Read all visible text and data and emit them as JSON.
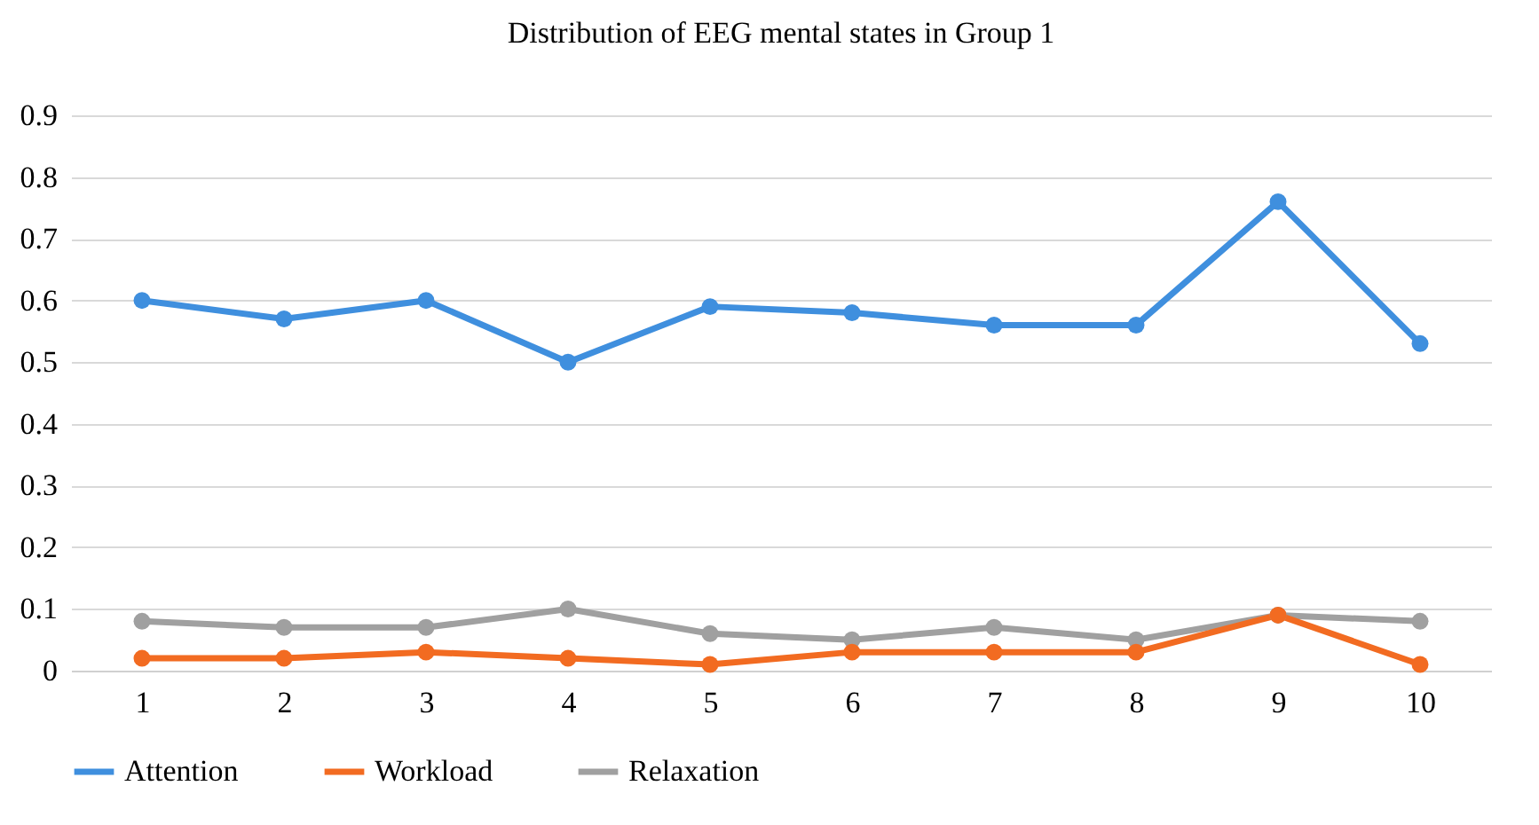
{
  "chart_data": {
    "type": "line",
    "title": "Distribution of EEG mental states in Group 1",
    "categories": [
      "1",
      "2",
      "3",
      "4",
      "5",
      "6",
      "7",
      "8",
      "9",
      "10"
    ],
    "series": [
      {
        "name": "Attention",
        "color": "#3f8fde",
        "values": [
          0.6,
          0.57,
          0.6,
          0.5,
          0.59,
          0.58,
          0.56,
          0.56,
          0.76,
          0.53
        ]
      },
      {
        "name": "Workload",
        "color": "#f26b21",
        "values": [
          0.02,
          0.02,
          0.03,
          0.02,
          0.01,
          0.03,
          0.03,
          0.03,
          0.09,
          0.01
        ]
      },
      {
        "name": "Relaxation",
        "color": "#a0a0a0",
        "values": [
          0.08,
          0.07,
          0.07,
          0.1,
          0.06,
          0.05,
          0.07,
          0.05,
          0.09,
          0.08
        ]
      }
    ],
    "ylim": [
      0,
      0.9
    ],
    "yticks": [
      0,
      0.1,
      0.2,
      0.3,
      0.4,
      0.5,
      0.6,
      0.7,
      0.8,
      0.9
    ],
    "grid": "y",
    "legend": "bottom",
    "marker": "circle",
    "line_style": "solid"
  }
}
